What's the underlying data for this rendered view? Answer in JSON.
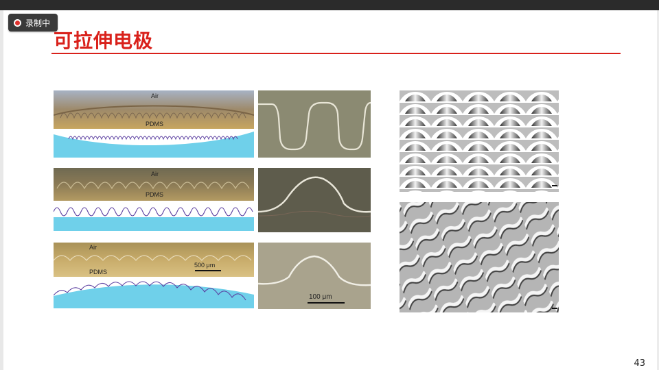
{
  "recording": {
    "label": "录制中"
  },
  "slide": {
    "title": "可拉伸电极",
    "page_number": "43"
  },
  "figure": {
    "rows": [
      {
        "top_label": "Air",
        "bottom_label": "PDMS"
      },
      {
        "top_label": "Air",
        "bottom_label": "PDMS"
      },
      {
        "top_label": "Air",
        "bottom_label": "PDMS",
        "scale_label": "500 μm"
      }
    ],
    "closeup_scale_label": "100 μm"
  },
  "colors": {
    "accent": "#d9211b",
    "substrate": "#6fd0ea",
    "wire": "#5b3fa0"
  }
}
